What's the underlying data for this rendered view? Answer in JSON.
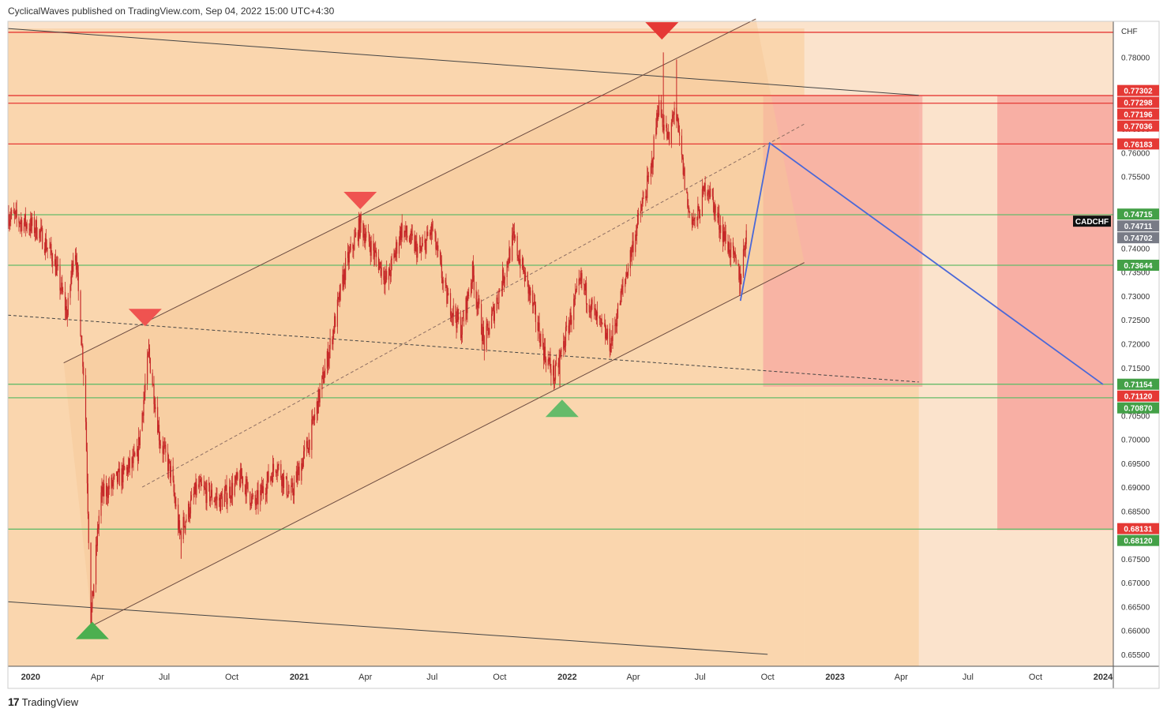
{
  "header": {
    "publisher_line": "CyclicalWaves published on TradingView.com, Sep 04, 2022 15:00 UTC+4:30"
  },
  "footer": {
    "brand": "TradingView",
    "mark": "17"
  },
  "colors": {
    "background": "#fbe3cc",
    "zone": "#f9d4ab",
    "channel_fill": "#f7c896",
    "candle": "#c62828",
    "red_line": "#e53935",
    "green_line": "#66bb6a",
    "projection": "#4a68d8",
    "target_box": "#f7a8a0"
  },
  "chart_data": {
    "type": "candlestick",
    "symbol": "CADCHF",
    "currency": "CHF",
    "ylim": [
      0.6525,
      0.7875
    ],
    "xlim": [
      "2019-12-01",
      "2024-01-15"
    ],
    "y_ticks": [
      "0.78000",
      "0.76500",
      "0.76000",
      "0.75500",
      "0.74500",
      "0.74000",
      "0.73500",
      "0.73000",
      "0.72500",
      "0.72000",
      "0.71500",
      "0.70500",
      "0.70000",
      "0.69500",
      "0.69000",
      "0.68500",
      "0.67500",
      "0.67000",
      "0.66500",
      "0.66000",
      "0.65500"
    ],
    "x_ticks": [
      {
        "label": "2020",
        "date": "2020-01-01",
        "bold": true
      },
      {
        "label": "Apr",
        "date": "2020-04-01",
        "bold": false
      },
      {
        "label": "Jul",
        "date": "2020-07-01",
        "bold": false
      },
      {
        "label": "Oct",
        "date": "2020-10-01",
        "bold": false
      },
      {
        "label": "2021",
        "date": "2021-01-01",
        "bold": true
      },
      {
        "label": "Apr",
        "date": "2021-04-01",
        "bold": false
      },
      {
        "label": "Jul",
        "date": "2021-07-01",
        "bold": false
      },
      {
        "label": "Oct",
        "date": "2021-10-01",
        "bold": false
      },
      {
        "label": "2022",
        "date": "2022-01-01",
        "bold": true
      },
      {
        "label": "Apr",
        "date": "2022-04-01",
        "bold": false
      },
      {
        "label": "Jul",
        "date": "2022-07-01",
        "bold": false
      },
      {
        "label": "Oct",
        "date": "2022-10-01",
        "bold": false
      },
      {
        "label": "2023",
        "date": "2023-01-01",
        "bold": true
      },
      {
        "label": "Apr",
        "date": "2023-04-01",
        "bold": false
      },
      {
        "label": "Jul",
        "date": "2023-07-01",
        "bold": false
      },
      {
        "label": "Oct",
        "date": "2023-10-01",
        "bold": false
      },
      {
        "label": "2024",
        "date": "2024-01-01",
        "bold": true
      }
    ],
    "price_path": [
      [
        "2019-12-01",
        0.747
      ],
      [
        "2020-01-10",
        0.744
      ],
      [
        "2020-02-01",
        0.738
      ],
      [
        "2020-02-20",
        0.726
      ],
      [
        "2020-03-01",
        0.742
      ],
      [
        "2020-03-15",
        0.71
      ],
      [
        "2020-03-23",
        0.662
      ],
      [
        "2020-04-05",
        0.688
      ],
      [
        "2020-05-01",
        0.692
      ],
      [
        "2020-05-25",
        0.696
      ],
      [
        "2020-06-10",
        0.718
      ],
      [
        "2020-06-25",
        0.7
      ],
      [
        "2020-07-10",
        0.693
      ],
      [
        "2020-07-22",
        0.68
      ],
      [
        "2020-08-15",
        0.69
      ],
      [
        "2020-09-15",
        0.687
      ],
      [
        "2020-10-15",
        0.692
      ],
      [
        "2020-11-01",
        0.686
      ],
      [
        "2020-12-01",
        0.695
      ],
      [
        "2020-12-20",
        0.688
      ],
      [
        "2021-01-15",
        0.7
      ],
      [
        "2021-02-10",
        0.718
      ],
      [
        "2021-03-05",
        0.736
      ],
      [
        "2021-03-25",
        0.745
      ],
      [
        "2021-04-10",
        0.74
      ],
      [
        "2021-05-01",
        0.733
      ],
      [
        "2021-05-20",
        0.744
      ],
      [
        "2021-06-15",
        0.739
      ],
      [
        "2021-07-01",
        0.744
      ],
      [
        "2021-07-20",
        0.73
      ],
      [
        "2021-08-10",
        0.723
      ],
      [
        "2021-08-25",
        0.735
      ],
      [
        "2021-09-10",
        0.72
      ],
      [
        "2021-09-25",
        0.728
      ],
      [
        "2021-10-20",
        0.742
      ],
      [
        "2021-11-10",
        0.731
      ],
      [
        "2021-12-01",
        0.718
      ],
      [
        "2021-12-15",
        0.713
      ],
      [
        "2022-01-10",
        0.728
      ],
      [
        "2022-01-20",
        0.733
      ],
      [
        "2022-02-10",
        0.725
      ],
      [
        "2022-03-01",
        0.72
      ],
      [
        "2022-03-20",
        0.733
      ],
      [
        "2022-04-05",
        0.744
      ],
      [
        "2022-04-25",
        0.756
      ],
      [
        "2022-05-05",
        0.77
      ],
      [
        "2022-05-20",
        0.762
      ],
      [
        "2022-05-27",
        0.77
      ],
      [
        "2022-06-05",
        0.76
      ],
      [
        "2022-06-15",
        0.748
      ],
      [
        "2022-06-25",
        0.745
      ],
      [
        "2022-07-10",
        0.754
      ],
      [
        "2022-07-25",
        0.746
      ],
      [
        "2022-08-15",
        0.738
      ],
      [
        "2022-08-25",
        0.734
      ],
      [
        "2022-09-04",
        0.746
      ]
    ],
    "swing_extremes": [
      [
        "2020-03-23",
        0.661,
        "low"
      ],
      [
        "2020-06-10",
        0.721,
        "high"
      ],
      [
        "2020-07-24",
        0.675,
        "high_low"
      ],
      [
        "2021-03-25",
        0.747,
        "high"
      ],
      [
        "2021-12-22",
        0.711,
        "low"
      ],
      [
        "2022-05-12",
        0.781,
        "high"
      ],
      [
        "2022-05-30",
        0.7795,
        "high"
      ],
      [
        "2022-08-24",
        0.73,
        "low"
      ]
    ],
    "horizontal_levels": [
      {
        "value": 0.7852,
        "color": "red"
      },
      {
        "value": 0.77196,
        "color": "red"
      },
      {
        "value": 0.77036,
        "color": "red"
      },
      {
        "value": 0.76183,
        "color": "red"
      },
      {
        "value": 0.74702,
        "color": "green"
      },
      {
        "value": 0.73644,
        "color": "green"
      },
      {
        "value": 0.71154,
        "color": "green"
      },
      {
        "value": 0.7087,
        "color": "green"
      },
      {
        "value": 0.6812,
        "color": "green"
      }
    ],
    "price_badges": [
      {
        "label": "0.77302",
        "value": 0.77302,
        "color": "#e53935"
      },
      {
        "label": "0.77298",
        "value": 0.77298,
        "color": "#e53935"
      },
      {
        "label": "0.77196",
        "value": 0.77196,
        "color": "#e53935"
      },
      {
        "label": "0.77036",
        "value": 0.77036,
        "color": "#e53935"
      },
      {
        "label": "0.76183",
        "value": 0.76183,
        "color": "#e53935"
      },
      {
        "label": "0.74715",
        "value": 0.74715,
        "color": "#43a047"
      },
      {
        "label": "0.74711",
        "value": 0.74711,
        "color": "#787b86"
      },
      {
        "label": "0.74702",
        "value": 0.74702,
        "color": "#787b86"
      },
      {
        "label": "0.73644",
        "value": 0.73644,
        "color": "#43a047"
      },
      {
        "label": "0.71154",
        "value": 0.71154,
        "color": "#43a047"
      },
      {
        "label": "0.71120",
        "value": 0.7112,
        "color": "#e53935"
      },
      {
        "label": "0.70870",
        "value": 0.7087,
        "color": "#43a047"
      },
      {
        "label": "0.68131",
        "value": 0.68131,
        "color": "#e53935"
      },
      {
        "label": "0.68120",
        "value": 0.6812,
        "color": "#43a047"
      }
    ],
    "symbol_tag": {
      "label": "CADCHF",
      "value": 0.7455
    },
    "trend_lines": [
      {
        "from": [
          "2019-12-01",
          0.786
        ],
        "to": [
          "2023-04-25",
          0.772
        ],
        "style": "solid",
        "color": "#444"
      },
      {
        "from": [
          "2019-12-01",
          0.666
        ],
        "to": [
          "2022-10-01",
          0.655
        ],
        "style": "solid",
        "color": "#444"
      },
      {
        "from": [
          "2020-02-15",
          0.716
        ],
        "to": [
          "2022-09-15",
          0.788
        ],
        "style": "solid",
        "color": "#6d4c41"
      },
      {
        "from": [
          "2020-03-25",
          0.661
        ],
        "to": [
          "2022-11-20",
          0.737
        ],
        "style": "solid",
        "color": "#6d4c41"
      },
      {
        "from": [
          "2020-06-01",
          0.69
        ],
        "to": [
          "2022-11-20",
          0.766
        ],
        "style": "dashed",
        "color": "#8d6e63"
      },
      {
        "from": [
          "2019-12-01",
          0.726
        ],
        "to": [
          "2023-04-25",
          0.712
        ],
        "style": "dashed",
        "color": "#444"
      }
    ],
    "zones": [
      {
        "from": [
          "2019-12-01",
          0.786
        ],
        "to": [
          "2022-11-20",
          0.6525
        ],
        "fill": "zone"
      },
      {
        "from": [
          "2022-11-20",
          0.772
        ],
        "to": [
          "2023-04-25",
          0.6525
        ],
        "fill": "zone"
      },
      {
        "from": [
          "2022-09-25",
          0.772
        ],
        "to": [
          "2023-04-30",
          0.711
        ],
        "fill": "target"
      },
      {
        "from": [
          "2023-08-10",
          0.772
        ],
        "to": [
          "2024-01-15",
          0.681
        ],
        "fill": "target_light"
      }
    ],
    "projection_path": [
      [
        "2022-08-25",
        0.729
      ],
      [
        "2022-10-04",
        0.762
      ],
      [
        "2024-01-01",
        0.7115
      ]
    ],
    "triangle_markers": [
      {
        "date": "2020-03-25",
        "value": 0.66,
        "dir": "up",
        "color": "#4caf50"
      },
      {
        "date": "2020-06-05",
        "value": 0.7255,
        "dir": "down",
        "color": "#ef5350"
      },
      {
        "date": "2021-03-25",
        "value": 0.75,
        "dir": "down",
        "color": "#ef5350"
      },
      {
        "date": "2021-12-25",
        "value": 0.7065,
        "dir": "up",
        "color": "#66bb6a"
      },
      {
        "date": "2022-05-10",
        "value": 0.7855,
        "dir": "down",
        "color": "#e53935"
      }
    ]
  }
}
